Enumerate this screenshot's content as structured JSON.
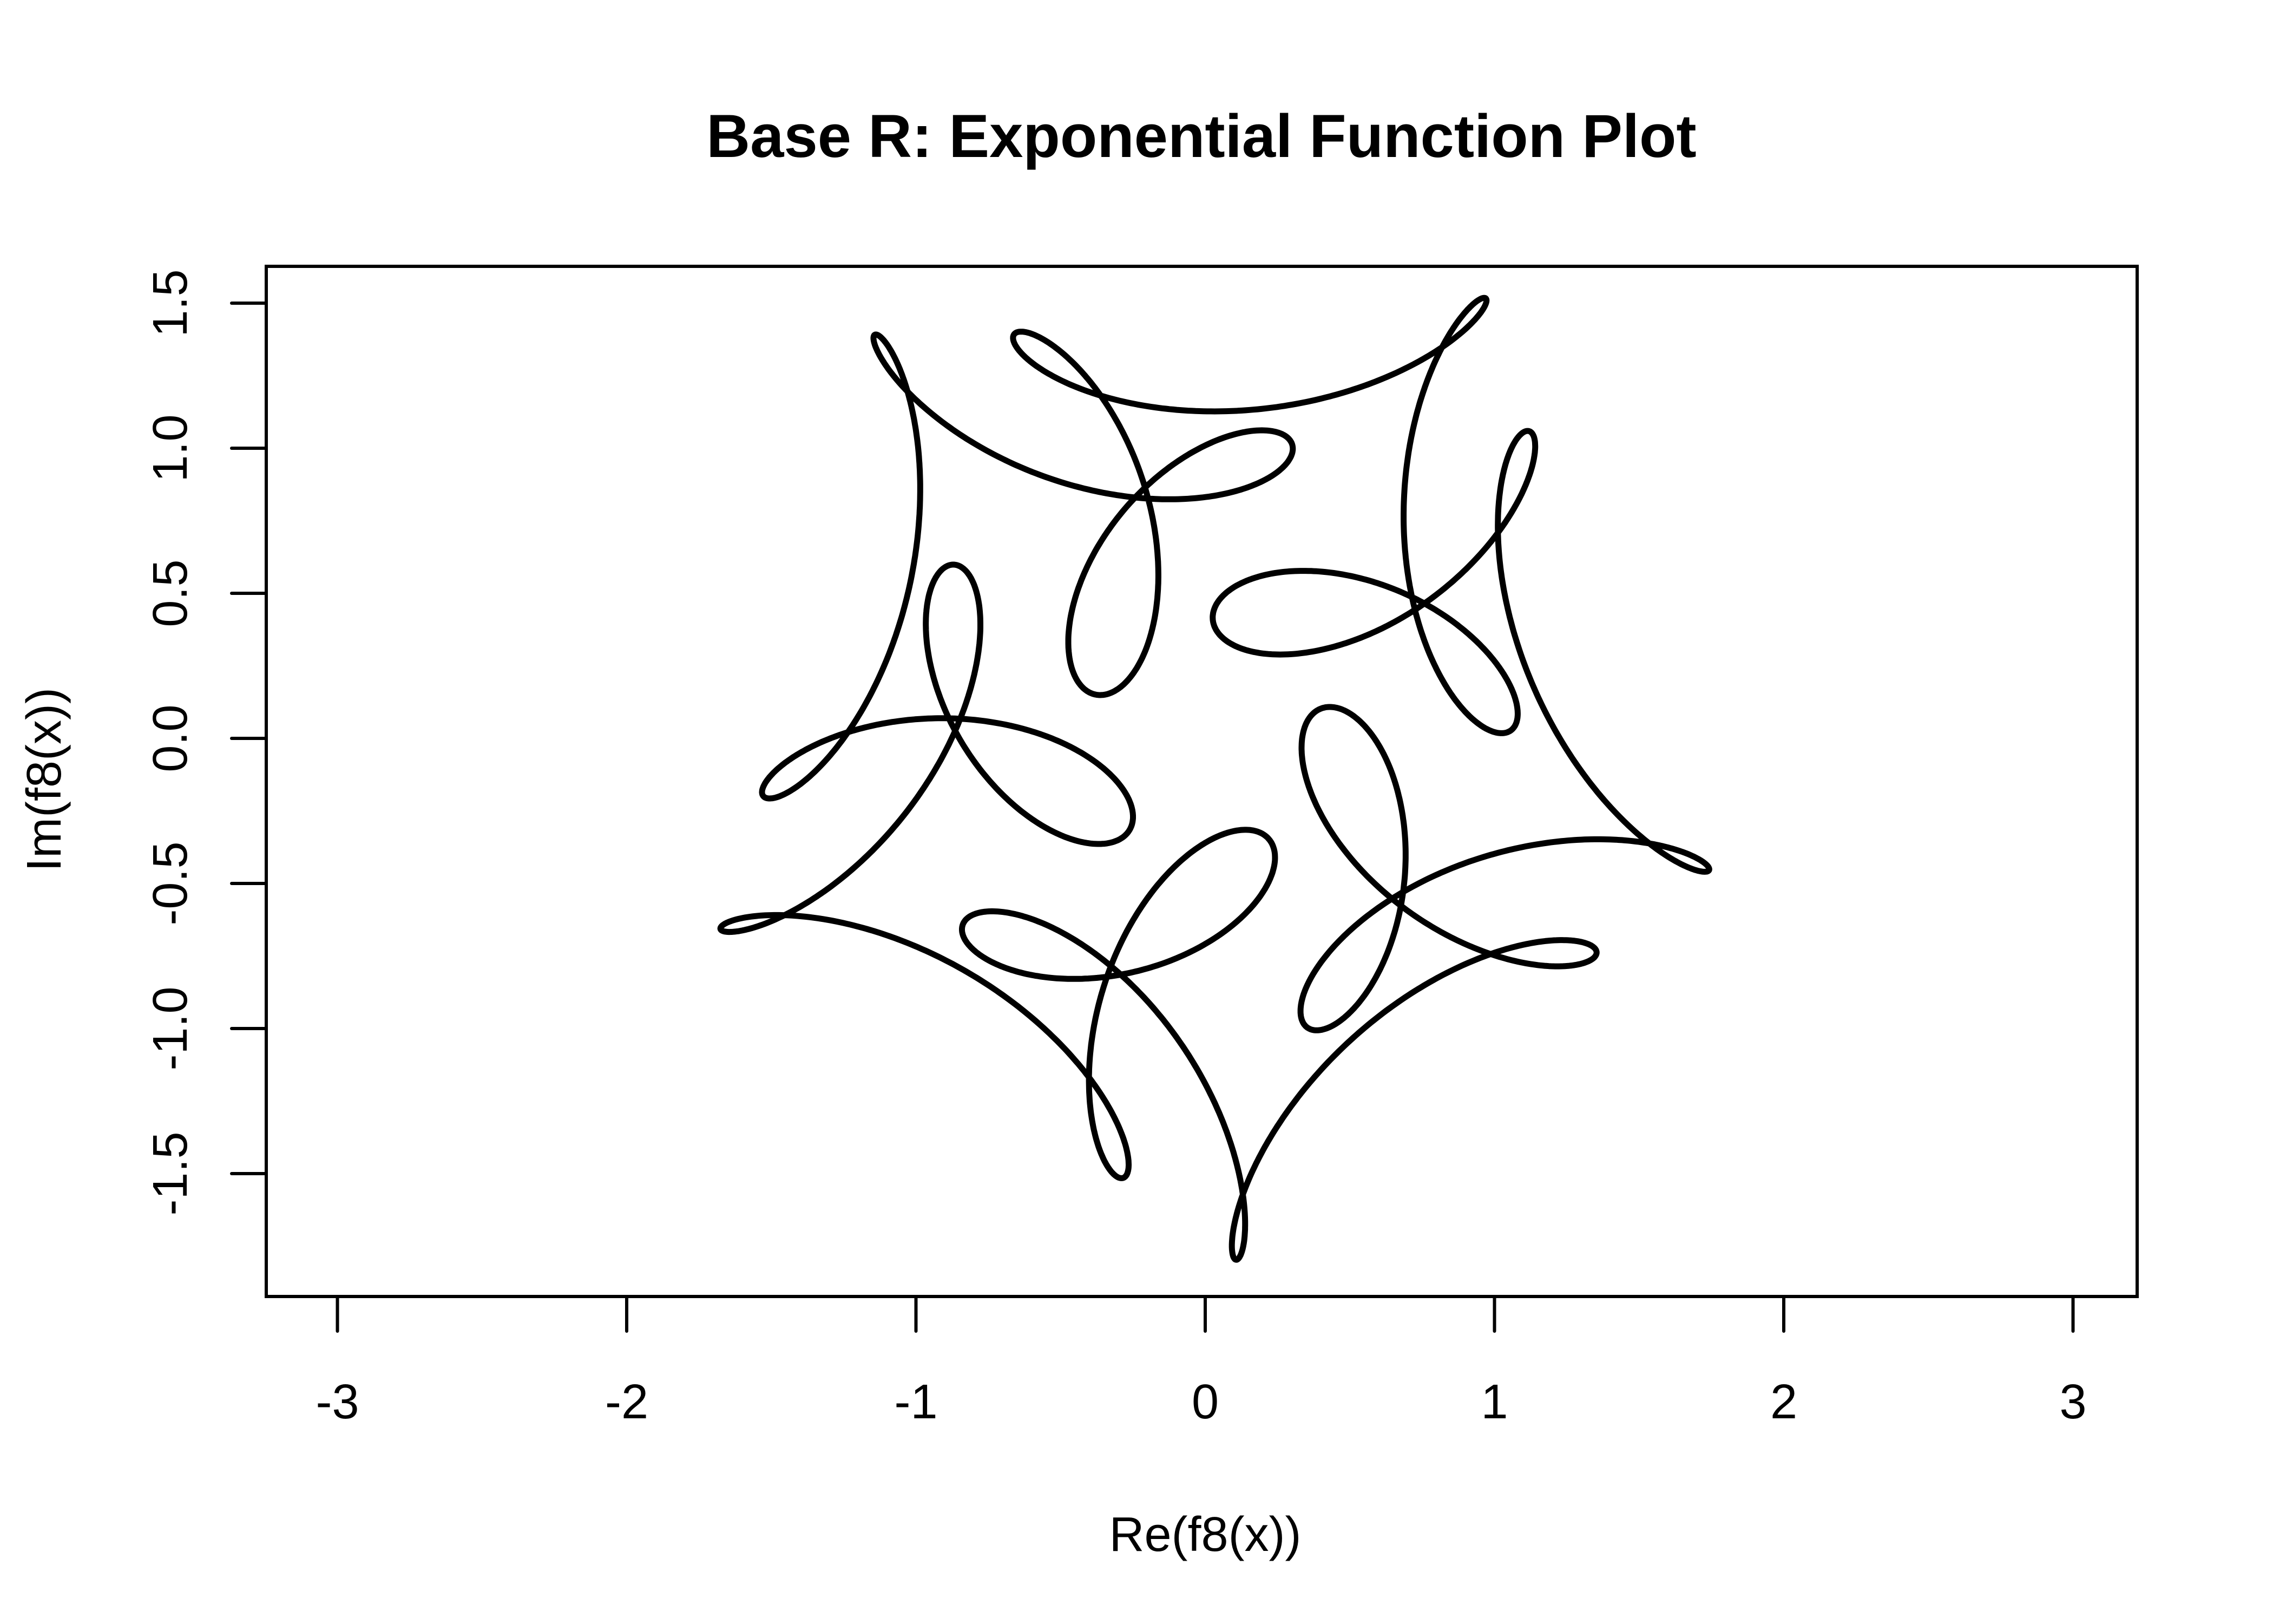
{
  "chart_data": {
    "type": "line",
    "title": "Base R: Exponential Function Plot",
    "xlabel": "Re(f8(x))",
    "ylabel": "Im(f8(x))",
    "xlim": [
      -3.2,
      3.2
    ],
    "ylim": [
      -1.92,
      1.62
    ],
    "x_ticks": [
      -3,
      -2,
      -1,
      0,
      1,
      2,
      3
    ],
    "x_tick_labels": [
      "-3",
      "-2",
      "-1",
      "0",
      "1",
      "2",
      "3"
    ],
    "y_ticks": [
      -1.5,
      -1.0,
      -0.5,
      0.0,
      0.5,
      1.0,
      1.5
    ],
    "y_tick_labels": [
      "-1.5",
      "-1.0",
      "-0.5",
      "0.0",
      "0.5",
      "1.0",
      "1.5"
    ],
    "grid": false,
    "legend": "none",
    "line_color": "#000000",
    "series": [
      {
        "parametric": "sum of complex exponentials coef * exp(i*freq*x)",
        "x_range": [
          0,
          6.283185
        ],
        "terms": [
          {
            "coef_re": 1,
            "coef_im": 0,
            "freq": 1
          },
          {
            "coef_re": 0.5,
            "coef_im": 0,
            "freq": 6
          },
          {
            "coef_re": 0,
            "coef_im": -0.333333,
            "freq": -14
          }
        ]
      }
    ]
  }
}
